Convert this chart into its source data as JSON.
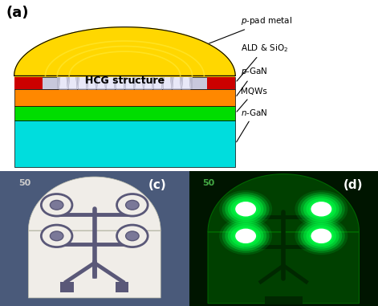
{
  "fig_width": 4.71,
  "fig_height": 3.81,
  "dpi": 100,
  "bg_color": "#ffffff",
  "panel_a_label": "(a)",
  "panel_c_label": "(c)",
  "panel_d_label": "(d)",
  "layer_ngan_color": "#00DDDD",
  "layer_mqws_color": "#00DD00",
  "layer_pgan_color": "#FF8800",
  "layer_ald_color": "#C8C8DC",
  "layer_red_color": "#CC0000",
  "dome_gold_color": "#FFD700",
  "dome_inner_color": "#FFEE66",
  "grating_color": "#D0D0E8",
  "grating_tooth_color": "#E8E8F8",
  "hcg_label": "HCG structure",
  "scale_bar_text": "50",
  "panel_c_bg": "#4A5A7A",
  "panel_c_device_color": "#F0EDE8",
  "panel_c_metal_color": "#5A5878",
  "panel_c_pad_color": "#7A7898",
  "panel_d_bg_dark": "#001A00",
  "panel_d_bg_mid": "#003300",
  "panel_d_arch_color": "#005500",
  "panel_d_circuit_color": "#004400",
  "panel_d_glow_color": "#00FF44"
}
